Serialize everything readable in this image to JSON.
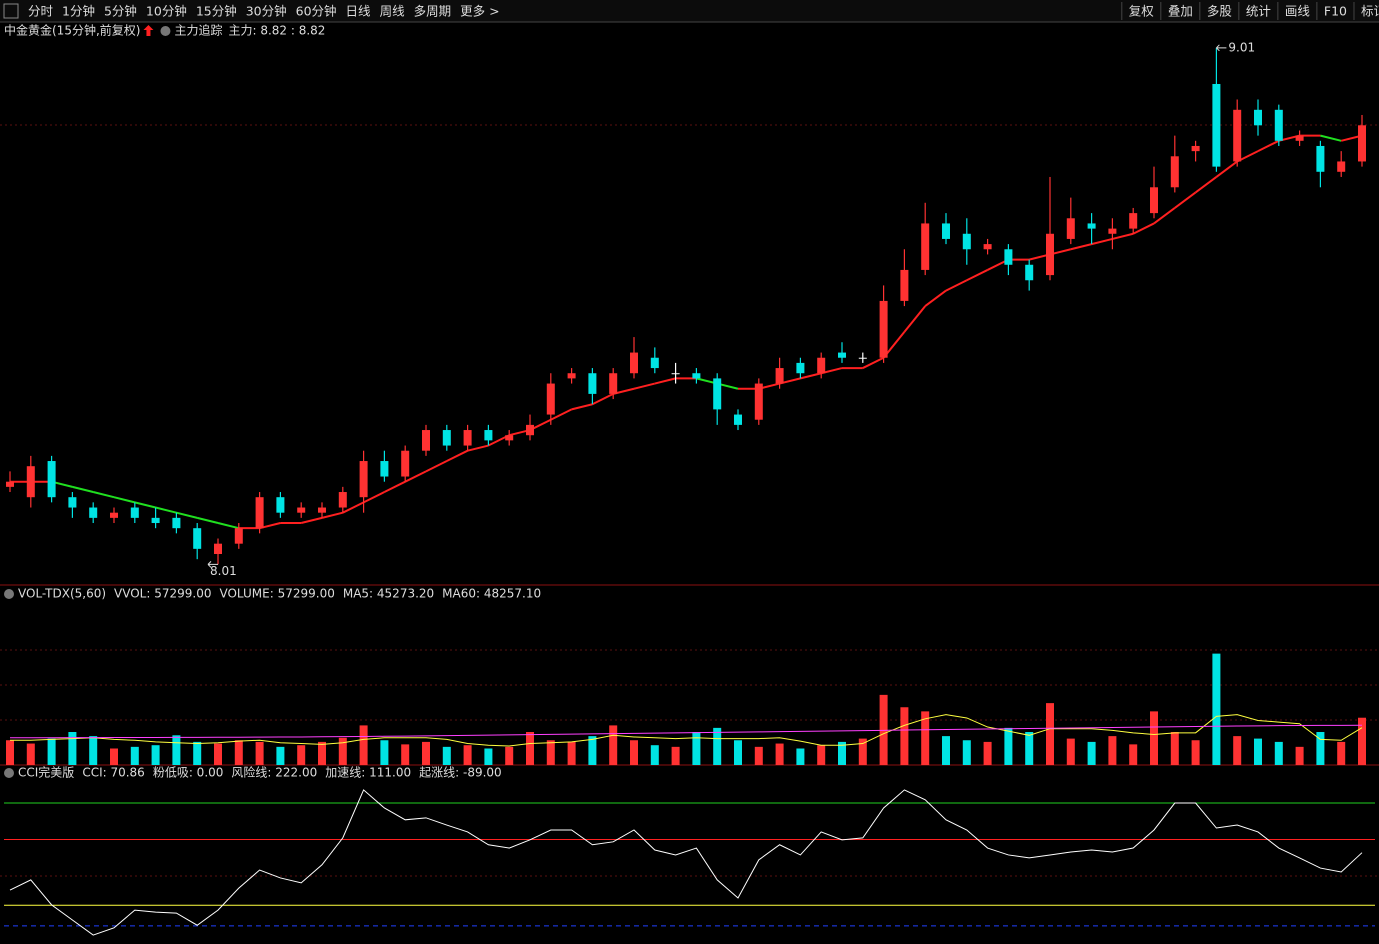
{
  "toolbar": {
    "left": [
      "分时",
      "1分钟",
      "5分钟",
      "10分钟",
      "15分钟",
      "30分钟",
      "60分钟",
      "日线",
      "周线",
      "多周期",
      "更多 >"
    ],
    "active": 4,
    "right": [
      "复权",
      "叠加",
      "多股",
      "统计",
      "画线",
      "F10",
      "标记"
    ]
  },
  "chart_data": [
    {
      "type": "candlestick",
      "title": "中金黄金(15分钟,前复权)",
      "indicator": "主力追踪",
      "indicator_value": "主力: 8.82 : 8.82",
      "up_color": "#ff3232",
      "down_color": "#00e4e4",
      "ylim": [
        7.97,
        9.06
      ],
      "max_label": "9.01",
      "min_label": "8.01",
      "candles": [
        [
          8.16,
          8.19,
          8.15,
          8.17
        ],
        [
          8.14,
          8.22,
          8.12,
          8.2
        ],
        [
          8.21,
          8.22,
          8.13,
          8.14
        ],
        [
          8.14,
          8.15,
          8.1,
          8.12
        ],
        [
          8.12,
          8.13,
          8.09,
          8.1
        ],
        [
          8.1,
          8.12,
          8.09,
          8.11
        ],
        [
          8.12,
          8.13,
          8.09,
          8.1
        ],
        [
          8.1,
          8.12,
          8.08,
          8.09
        ],
        [
          8.1,
          8.11,
          8.07,
          8.08
        ],
        [
          8.08,
          8.09,
          8.02,
          8.04
        ],
        [
          8.03,
          8.06,
          8.01,
          8.05
        ],
        [
          8.05,
          8.09,
          8.04,
          8.08
        ],
        [
          8.08,
          8.15,
          8.07,
          8.14
        ],
        [
          8.14,
          8.15,
          8.1,
          8.11
        ],
        [
          8.11,
          8.13,
          8.1,
          8.12
        ],
        [
          8.11,
          8.13,
          8.1,
          8.12
        ],
        [
          8.12,
          8.16,
          8.11,
          8.15
        ],
        [
          8.14,
          8.23,
          8.11,
          8.21
        ],
        [
          8.21,
          8.23,
          8.17,
          8.18
        ],
        [
          8.18,
          8.24,
          8.17,
          8.23
        ],
        [
          8.23,
          8.28,
          8.22,
          8.27
        ],
        [
          8.27,
          8.28,
          8.23,
          8.24
        ],
        [
          8.24,
          8.28,
          8.23,
          8.27
        ],
        [
          8.27,
          8.28,
          8.24,
          8.25
        ],
        [
          8.25,
          8.27,
          8.24,
          8.26
        ],
        [
          8.26,
          8.3,
          8.25,
          8.28
        ],
        [
          8.3,
          8.38,
          8.28,
          8.36
        ],
        [
          8.37,
          8.39,
          8.36,
          8.38
        ],
        [
          8.38,
          8.39,
          8.32,
          8.34
        ],
        [
          8.34,
          8.39,
          8.33,
          8.38
        ],
        [
          8.38,
          8.45,
          8.37,
          8.42
        ],
        [
          8.41,
          8.43,
          8.38,
          8.39
        ],
        [
          8.38,
          8.4,
          8.36,
          8.38
        ],
        [
          8.38,
          8.39,
          8.36,
          8.37
        ],
        [
          8.37,
          8.38,
          8.28,
          8.31
        ],
        [
          8.3,
          8.31,
          8.27,
          8.28
        ],
        [
          8.29,
          8.37,
          8.28,
          8.36
        ],
        [
          8.36,
          8.41,
          8.35,
          8.39
        ],
        [
          8.4,
          8.41,
          8.37,
          8.38
        ],
        [
          8.38,
          8.42,
          8.37,
          8.41
        ],
        [
          8.42,
          8.44,
          8.4,
          8.41
        ],
        [
          8.41,
          8.42,
          8.4,
          8.41
        ],
        [
          8.41,
          8.55,
          8.4,
          8.52
        ],
        [
          8.52,
          8.62,
          8.51,
          8.58
        ],
        [
          8.58,
          8.71,
          8.57,
          8.67
        ],
        [
          8.67,
          8.69,
          8.63,
          8.64
        ],
        [
          8.65,
          8.68,
          8.59,
          8.62
        ],
        [
          8.62,
          8.64,
          8.61,
          8.63
        ],
        [
          8.62,
          8.63,
          8.57,
          8.59
        ],
        [
          8.59,
          8.6,
          8.54,
          8.56
        ],
        [
          8.57,
          8.76,
          8.56,
          8.65
        ],
        [
          8.64,
          8.72,
          8.63,
          8.68
        ],
        [
          8.67,
          8.69,
          8.63,
          8.66
        ],
        [
          8.65,
          8.68,
          8.62,
          8.66
        ],
        [
          8.66,
          8.7,
          8.65,
          8.69
        ],
        [
          8.69,
          8.78,
          8.68,
          8.74
        ],
        [
          8.74,
          8.84,
          8.73,
          8.8
        ],
        [
          8.81,
          8.83,
          8.79,
          8.82
        ],
        [
          8.94,
          9.01,
          8.77,
          8.78
        ],
        [
          8.79,
          8.91,
          8.78,
          8.89
        ],
        [
          8.89,
          8.91,
          8.84,
          8.86
        ],
        [
          8.89,
          8.9,
          8.82,
          8.83
        ],
        [
          8.83,
          8.85,
          8.82,
          8.84
        ],
        [
          8.82,
          8.83,
          8.74,
          8.77
        ],
        [
          8.77,
          8.81,
          8.76,
          8.79
        ],
        [
          8.79,
          8.88,
          8.78,
          8.86
        ]
      ],
      "ma": {
        "rise_color": "#ff2020",
        "fall_color": "#20e020",
        "values": [
          8.17,
          8.17,
          8.17,
          8.16,
          8.15,
          8.14,
          8.13,
          8.12,
          8.11,
          8.1,
          8.09,
          8.08,
          8.08,
          8.09,
          8.09,
          8.1,
          8.11,
          8.13,
          8.15,
          8.17,
          8.19,
          8.21,
          8.23,
          8.24,
          8.26,
          8.27,
          8.29,
          8.31,
          8.32,
          8.34,
          8.35,
          8.36,
          8.37,
          8.37,
          8.36,
          8.35,
          8.35,
          8.36,
          8.37,
          8.38,
          8.39,
          8.39,
          8.41,
          8.46,
          8.51,
          8.54,
          8.56,
          8.58,
          8.6,
          8.6,
          8.61,
          8.62,
          8.63,
          8.64,
          8.65,
          8.67,
          8.7,
          8.73,
          8.76,
          8.79,
          8.81,
          8.83,
          8.84,
          8.84,
          8.83,
          8.84
        ]
      }
    },
    {
      "type": "bar",
      "title": "VOL-TDX(5,60)",
      "ylim": [
        0,
        200000
      ],
      "legend": [
        {
          "label": "VVOL: 57299.00",
          "color": "#dddddd"
        },
        {
          "label": "VOLUME: 57299.00",
          "color": "#ffff40"
        },
        {
          "label": "MA5: 45273.20",
          "color": "#ffff40"
        },
        {
          "label": "MA60: 48257.10",
          "color": "#ff40ff"
        }
      ],
      "values": [
        30000,
        26000,
        32000,
        40000,
        35000,
        20000,
        22000,
        24000,
        36000,
        28000,
        26000,
        30000,
        28000,
        22000,
        24000,
        28000,
        33000,
        48000,
        30000,
        25000,
        28000,
        22000,
        24000,
        20000,
        22000,
        40000,
        30000,
        28000,
        35000,
        48000,
        30000,
        24000,
        22000,
        40000,
        45000,
        30000,
        22000,
        26000,
        20000,
        24000,
        28000,
        32000,
        85000,
        70000,
        65000,
        35000,
        30000,
        28000,
        45000,
        40000,
        75000,
        32000,
        28000,
        35000,
        25000,
        65000,
        40000,
        30000,
        135000,
        35000,
        32000,
        28000,
        22000,
        40000,
        28000,
        57299
      ],
      "series": [
        {
          "name": "MA5",
          "color": "#ffff40",
          "values": [
            30000,
            30000,
            31000,
            32000,
            33000,
            31000,
            30000,
            28000,
            27000,
            26000,
            27000,
            29000,
            30000,
            27000,
            26000,
            25000,
            27000,
            31000,
            33000,
            33000,
            33000,
            31000,
            26000,
            24000,
            23000,
            26000,
            27000,
            28000,
            31000,
            36000,
            34000,
            33000,
            32000,
            33000,
            32000,
            32000,
            32000,
            33000,
            29000,
            24000,
            24000,
            26000,
            38000,
            48000,
            56000,
            61000,
            57000,
            46000,
            41000,
            36000,
            44000,
            44000,
            44000,
            42000,
            39000,
            37000,
            39000,
            39000,
            59000,
            61000,
            54000,
            52000,
            50000,
            31000,
            30000,
            45273.2
          ]
        },
        {
          "name": "MA60",
          "color": "#ff40ff",
          "values": [
            33000,
            33000,
            33100,
            33200,
            33200,
            33300,
            33300,
            33400,
            33500,
            33500,
            33600,
            33700,
            33800,
            33900,
            34000,
            34200,
            34400,
            34600,
            34800,
            35000,
            35300,
            35600,
            35900,
            36200,
            36500,
            36800,
            37100,
            37400,
            37700,
            38000,
            38300,
            38600,
            38900,
            39200,
            39500,
            39800,
            40100,
            40400,
            40700,
            41000,
            41300,
            41600,
            42000,
            42400,
            42800,
            43100,
            43400,
            43700,
            44000,
            44300,
            44600,
            44900,
            45200,
            45500,
            45800,
            46100,
            46400,
            46700,
            47000,
            47300,
            47500,
            47700,
            47900,
            48000,
            48100,
            48257.1
          ]
        }
      ]
    },
    {
      "type": "line",
      "title": "CCI完美版",
      "color": "#ffffff",
      "ylim": [
        -195,
        277
      ],
      "legend": [
        {
          "label": "CCI: 70.86",
          "color": "#dddddd"
        },
        {
          "label": "粉低吸: 0.00",
          "color": "#ffff40"
        }
      ],
      "levels": [
        {
          "value": 222,
          "label": "风险线: 222.00",
          "color": "#20d020"
        },
        {
          "value": 111,
          "label": "加速线: 111.00",
          "color": "#ff2020"
        },
        {
          "value": -89,
          "label": "起涨线: -89.00",
          "color": "#ffff40"
        }
      ],
      "dashed_level": {
        "value": -152,
        "color": "#2040ff"
      },
      "values": [
        -43,
        -12,
        -88,
        -134,
        -180,
        -158,
        -104,
        -110,
        -113,
        -150,
        -104,
        -37,
        18,
        -6,
        -21,
        34,
        116,
        262,
        207,
        171,
        177,
        155,
        134,
        95,
        85,
        110,
        140,
        140,
        95,
        104,
        140,
        79,
        64,
        85,
        -12,
        -67,
        49,
        95,
        64,
        134,
        110,
        116,
        207,
        262,
        232,
        171,
        140,
        85,
        64,
        55,
        64,
        73,
        79,
        73,
        85,
        140,
        222,
        222,
        146,
        155,
        134,
        85,
        55,
        24,
        12,
        70.86
      ]
    }
  ]
}
